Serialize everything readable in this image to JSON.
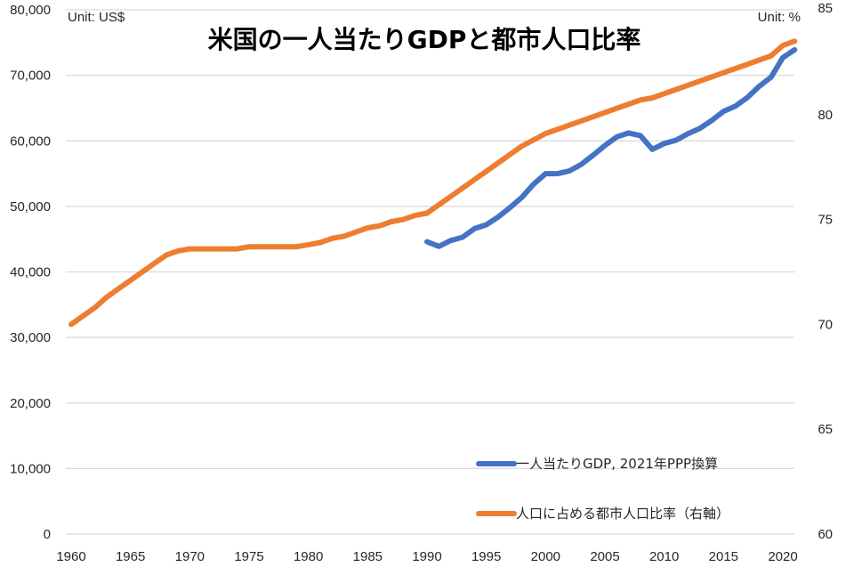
{
  "chart_data": {
    "type": "line",
    "title": "米国の一人当たりGDPと都市人口比率",
    "unit_left": "Unit: US$",
    "unit_right": "Unit: %",
    "xlabel": "",
    "ylabel": "",
    "x_ticks": [
      "1960",
      "1965",
      "1970",
      "1975",
      "1980",
      "1985",
      "1990",
      "1995",
      "2000",
      "2005",
      "2010",
      "2015",
      "2020"
    ],
    "xlim": [
      1960,
      2021
    ],
    "y_left": {
      "lim": [
        0,
        80000
      ],
      "ticks": [
        "0",
        "10,000",
        "20,000",
        "30,000",
        "40,000",
        "50,000",
        "60,000",
        "70,000",
        "80,000"
      ],
      "tick_values": [
        0,
        10000,
        20000,
        30000,
        40000,
        50000,
        60000,
        70000,
        80000
      ]
    },
    "y_right": {
      "lim": [
        60,
        85
      ],
      "ticks": [
        "60",
        "65",
        "70",
        "75",
        "80",
        "85"
      ],
      "tick_values": [
        60,
        65,
        70,
        75,
        80,
        85
      ]
    },
    "grid": true,
    "legend_position": "bottom-right",
    "colors": {
      "gdp": "#4472C4",
      "urban": "#ED7D31",
      "grid": "#D9D9D9"
    },
    "series": [
      {
        "name": "一人当たりGDP, 2021年PPP換算",
        "axis": "left",
        "color": "#4472C4",
        "x": [
          1990,
          1991,
          1992,
          1993,
          1994,
          1995,
          1996,
          1997,
          1998,
          1999,
          2000,
          2001,
          2002,
          2003,
          2004,
          2005,
          2006,
          2007,
          2008,
          2009,
          2010,
          2011,
          2012,
          2013,
          2014,
          2015,
          2016,
          2017,
          2018,
          2019,
          2020,
          2021
        ],
        "values": [
          44600,
          43900,
          44800,
          45300,
          46600,
          47200,
          48400,
          49800,
          51400,
          53400,
          55000,
          55000,
          55400,
          56400,
          57800,
          59300,
          60600,
          61200,
          60800,
          58700,
          59600,
          60100,
          61100,
          61900,
          63100,
          64500,
          65300,
          66600,
          68300,
          69700,
          72700,
          73900
        ]
      },
      {
        "name": "人口に占める都市人口比率（右軸）",
        "axis": "right",
        "color": "#ED7D31",
        "x": [
          1960,
          1961,
          1962,
          1963,
          1964,
          1965,
          1966,
          1967,
          1968,
          1969,
          1970,
          1971,
          1972,
          1973,
          1974,
          1975,
          1976,
          1977,
          1978,
          1979,
          1980,
          1981,
          1982,
          1983,
          1984,
          1985,
          1986,
          1987,
          1988,
          1989,
          1990,
          1991,
          1992,
          1993,
          1994,
          1995,
          1996,
          1997,
          1998,
          1999,
          2000,
          2001,
          2002,
          2003,
          2004,
          2005,
          2006,
          2007,
          2008,
          2009,
          2010,
          2011,
          2012,
          2013,
          2014,
          2015,
          2016,
          2017,
          2018,
          2019,
          2020,
          2021
        ],
        "values": [
          70.0,
          70.4,
          70.8,
          71.3,
          71.7,
          72.1,
          72.5,
          72.9,
          73.3,
          73.5,
          73.6,
          73.6,
          73.6,
          73.6,
          73.6,
          73.7,
          73.7,
          73.7,
          73.7,
          73.7,
          73.8,
          73.9,
          74.1,
          74.2,
          74.4,
          74.6,
          74.7,
          74.9,
          75.0,
          75.2,
          75.3,
          75.7,
          76.1,
          76.5,
          76.9,
          77.3,
          77.7,
          78.1,
          78.5,
          78.8,
          79.1,
          79.3,
          79.5,
          79.7,
          79.9,
          80.1,
          80.3,
          80.5,
          80.7,
          80.8,
          81.0,
          81.2,
          81.4,
          81.6,
          81.8,
          82.0,
          82.2,
          82.4,
          82.6,
          82.8,
          83.3,
          83.5
        ]
      }
    ]
  }
}
